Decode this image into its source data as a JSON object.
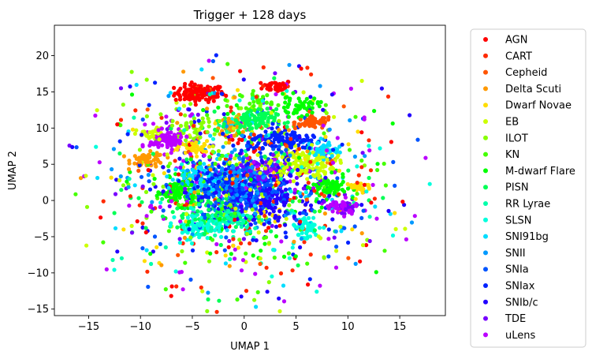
{
  "chart_data": {
    "type": "scatter",
    "title": "Trigger + 128 days",
    "xlabel": "UMAP 1",
    "ylabel": "UMAP 2",
    "xlim": [
      -18.3,
      19.4
    ],
    "ylim": [
      -15.9,
      24.2
    ],
    "xticks": [
      -15,
      -10,
      -5,
      0,
      5,
      10,
      15
    ],
    "yticks": [
      -15,
      -10,
      -5,
      0,
      5,
      10,
      15,
      20
    ],
    "grid": false,
    "legend_position": "outside-right",
    "series": [
      {
        "name": "AGN",
        "color": "#ff0000",
        "clusters": [
          {
            "cx": -4.3,
            "cy": 14.8,
            "sx": 1.2,
            "sy": 0.6,
            "n": 120
          },
          {
            "cx": 3.2,
            "cy": 15.8,
            "sx": 0.7,
            "sy": 0.4,
            "n": 50
          }
        ],
        "scatter_n": 60
      },
      {
        "name": "CART",
        "color": "#ff2a00",
        "clusters": [],
        "scatter_n": 90
      },
      {
        "name": "Cepheid",
        "color": "#ff5500",
        "clusters": [
          {
            "cx": 6.7,
            "cy": 10.8,
            "sx": 0.9,
            "sy": 0.45,
            "n": 70
          }
        ],
        "scatter_n": 30
      },
      {
        "name": "Delta Scuti",
        "color": "#ff9900",
        "clusters": [
          {
            "cx": -9.3,
            "cy": 5.6,
            "sx": 0.8,
            "sy": 0.5,
            "n": 60
          },
          {
            "cx": -1.0,
            "cy": 10.4,
            "sx": 0.8,
            "sy": 0.6,
            "n": 40
          }
        ],
        "scatter_n": 30
      },
      {
        "name": "Dwarf Novae",
        "color": "#ffdd00",
        "clusters": [
          {
            "cx": -5.0,
            "cy": 7.2,
            "sx": 0.7,
            "sy": 0.5,
            "n": 40
          },
          {
            "cx": 11.0,
            "cy": 1.8,
            "sx": 0.6,
            "sy": 0.4,
            "n": 30
          }
        ],
        "scatter_n": 60
      },
      {
        "name": "EB",
        "color": "#ccff00",
        "clusters": [
          {
            "cx": 5.5,
            "cy": 5.1,
            "sx": 1.6,
            "sy": 1.1,
            "n": 140
          },
          {
            "cx": -9.0,
            "cy": 9.0,
            "sx": 0.7,
            "sy": 0.5,
            "n": 30
          }
        ],
        "scatter_n": 80
      },
      {
        "name": "ILOT",
        "color": "#88ff00",
        "clusters": [
          {
            "cx": -5.0,
            "cy": 10.0,
            "sx": 1.0,
            "sy": 0.8,
            "n": 40
          }
        ],
        "scatter_n": 90
      },
      {
        "name": "KN",
        "color": "#44ff00",
        "clusters": [
          {
            "cx": 1.2,
            "cy": 13.8,
            "sx": 0.8,
            "sy": 0.6,
            "n": 30
          }
        ],
        "scatter_n": 80
      },
      {
        "name": "M-dwarf Flare",
        "color": "#00ff00",
        "clusters": [
          {
            "cx": -6.3,
            "cy": 1.2,
            "sx": 0.8,
            "sy": 0.9,
            "n": 90
          },
          {
            "cx": 8.2,
            "cy": 1.8,
            "sx": 0.8,
            "sy": 0.8,
            "n": 80
          },
          {
            "cx": 5.2,
            "cy": 13.0,
            "sx": 1.0,
            "sy": 0.7,
            "n": 50
          }
        ],
        "scatter_n": 60
      },
      {
        "name": "PISN",
        "color": "#00ff55",
        "clusters": [
          {
            "cx": 0.5,
            "cy": 11.0,
            "sx": 1.3,
            "sy": 0.8,
            "n": 110
          },
          {
            "cx": -3.5,
            "cy": -2.0,
            "sx": 1.8,
            "sy": 1.2,
            "n": 70
          }
        ],
        "scatter_n": 60
      },
      {
        "name": "RR Lyrae",
        "color": "#00ffaa",
        "clusters": [
          {
            "cx": -1.5,
            "cy": -2.5,
            "sx": 1.5,
            "sy": 1.0,
            "n": 70
          }
        ],
        "scatter_n": 40
      },
      {
        "name": "SLSN",
        "color": "#00ffdd",
        "clusters": [
          {
            "cx": -4.3,
            "cy": -3.5,
            "sx": 1.2,
            "sy": 0.9,
            "n": 80
          },
          {
            "cx": 5.8,
            "cy": -3.8,
            "sx": 0.7,
            "sy": 0.9,
            "n": 50
          }
        ],
        "scatter_n": 50
      },
      {
        "name": "SNI91bg",
        "color": "#00ddff",
        "clusters": [
          {
            "cx": -4.5,
            "cy": 3.0,
            "sx": 1.2,
            "sy": 1.0,
            "n": 60
          },
          {
            "cx": 7.5,
            "cy": 7.0,
            "sx": 0.7,
            "sy": 0.6,
            "n": 40
          }
        ],
        "scatter_n": 50
      },
      {
        "name": "SNII",
        "color": "#0099ff",
        "clusters": [
          {
            "cx": -1.0,
            "cy": 2.5,
            "sx": 2.2,
            "sy": 1.8,
            "n": 130
          }
        ],
        "scatter_n": 60
      },
      {
        "name": "SNIa",
        "color": "#0055ff",
        "clusters": [
          {
            "cx": 0.0,
            "cy": 1.5,
            "sx": 2.5,
            "sy": 2.0,
            "n": 170
          }
        ],
        "scatter_n": 60
      },
      {
        "name": "SNIax",
        "color": "#0022ff",
        "clusters": [
          {
            "cx": -1.5,
            "cy": 1.8,
            "sx": 2.0,
            "sy": 1.6,
            "n": 150
          },
          {
            "cx": 3.8,
            "cy": 8.2,
            "sx": 1.7,
            "sy": 0.7,
            "n": 110
          }
        ],
        "scatter_n": 60
      },
      {
        "name": "SNIb/c",
        "color": "#2200ff",
        "clusters": [
          {
            "cx": 1.5,
            "cy": 0.5,
            "sx": 2.2,
            "sy": 1.8,
            "n": 170
          }
        ],
        "scatter_n": 80
      },
      {
        "name": "TDE",
        "color": "#7700ff",
        "clusters": [
          {
            "cx": 1.8,
            "cy": 3.8,
            "sx": 1.2,
            "sy": 0.9,
            "n": 90
          },
          {
            "cx": 9.8,
            "cy": -1.0,
            "sx": 0.6,
            "sy": 0.5,
            "n": 20
          }
        ],
        "scatter_n": 60
      },
      {
        "name": "uLens",
        "color": "#bb00ff",
        "clusters": [
          {
            "cx": -7.3,
            "cy": 8.3,
            "sx": 0.9,
            "sy": 0.7,
            "n": 100
          },
          {
            "cx": 9.3,
            "cy": -1.0,
            "sx": 0.8,
            "sy": 0.5,
            "n": 40
          }
        ],
        "scatter_n": 100
      }
    ]
  }
}
